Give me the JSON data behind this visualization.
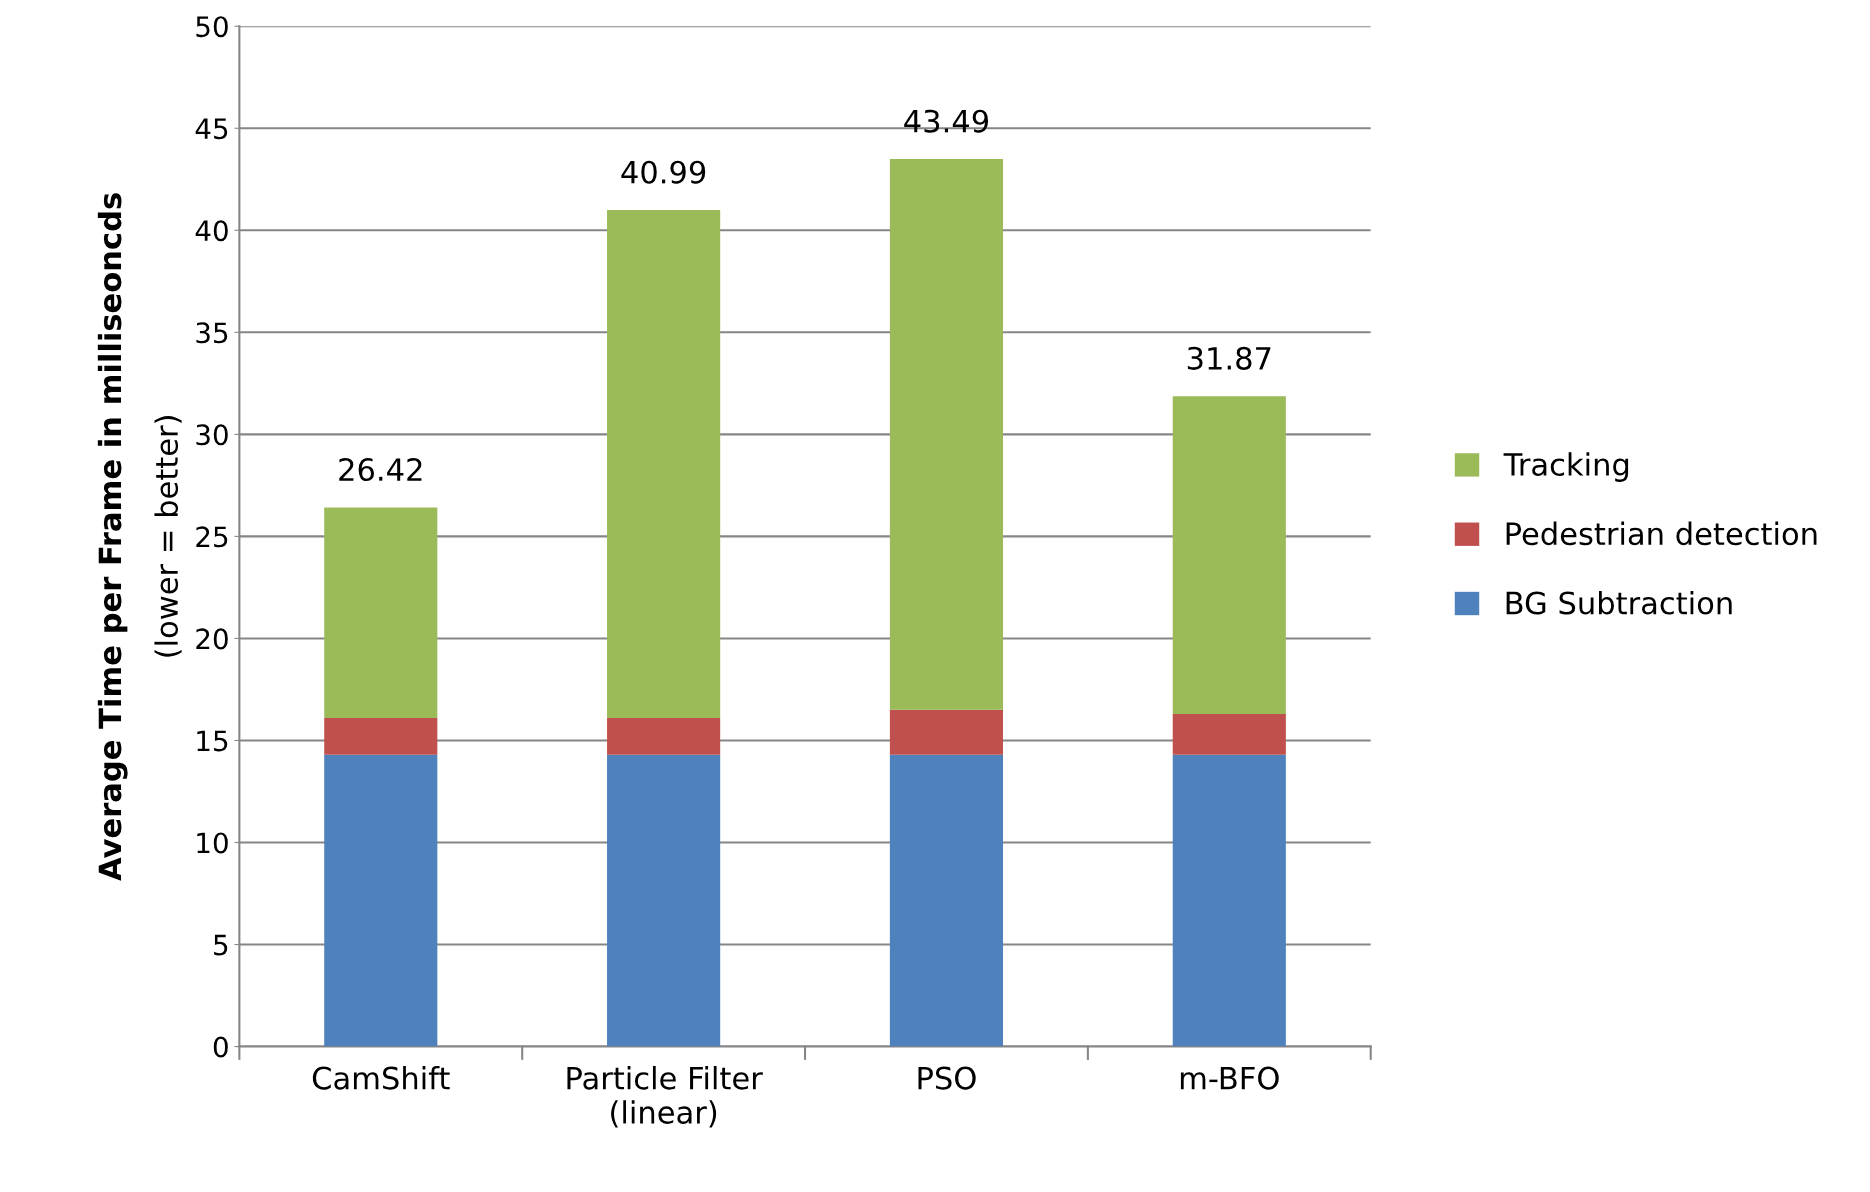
{
  "chart_data": {
    "type": "bar",
    "stacked": true,
    "ylabel": "Average Time per Frame in milliseoncds\n(lower = better)",
    "categories": [
      "CamShift",
      "Particle Filter\n(linear)",
      "PSO",
      "m-BFO"
    ],
    "series": [
      {
        "name": "BG Subtraction",
        "color": "#4f81bd",
        "values": [
          14.3,
          14.3,
          14.3,
          14.3
        ]
      },
      {
        "name": "Pedestrian detection",
        "color": "#c0504d",
        "values": [
          1.8,
          1.8,
          2.2,
          2.0
        ]
      },
      {
        "name": "Tracking",
        "color": "#9bbb59",
        "values": [
          10.32,
          24.89,
          26.99,
          15.57
        ]
      }
    ],
    "totals": [
      "26.42",
      "40.99",
      "43.49",
      "31.87"
    ],
    "ylim": [
      0,
      50
    ],
    "yticks": [
      0,
      5,
      10,
      15,
      20,
      25,
      30,
      35,
      40,
      45,
      50
    ],
    "grid": "y",
    "legend": "right"
  }
}
